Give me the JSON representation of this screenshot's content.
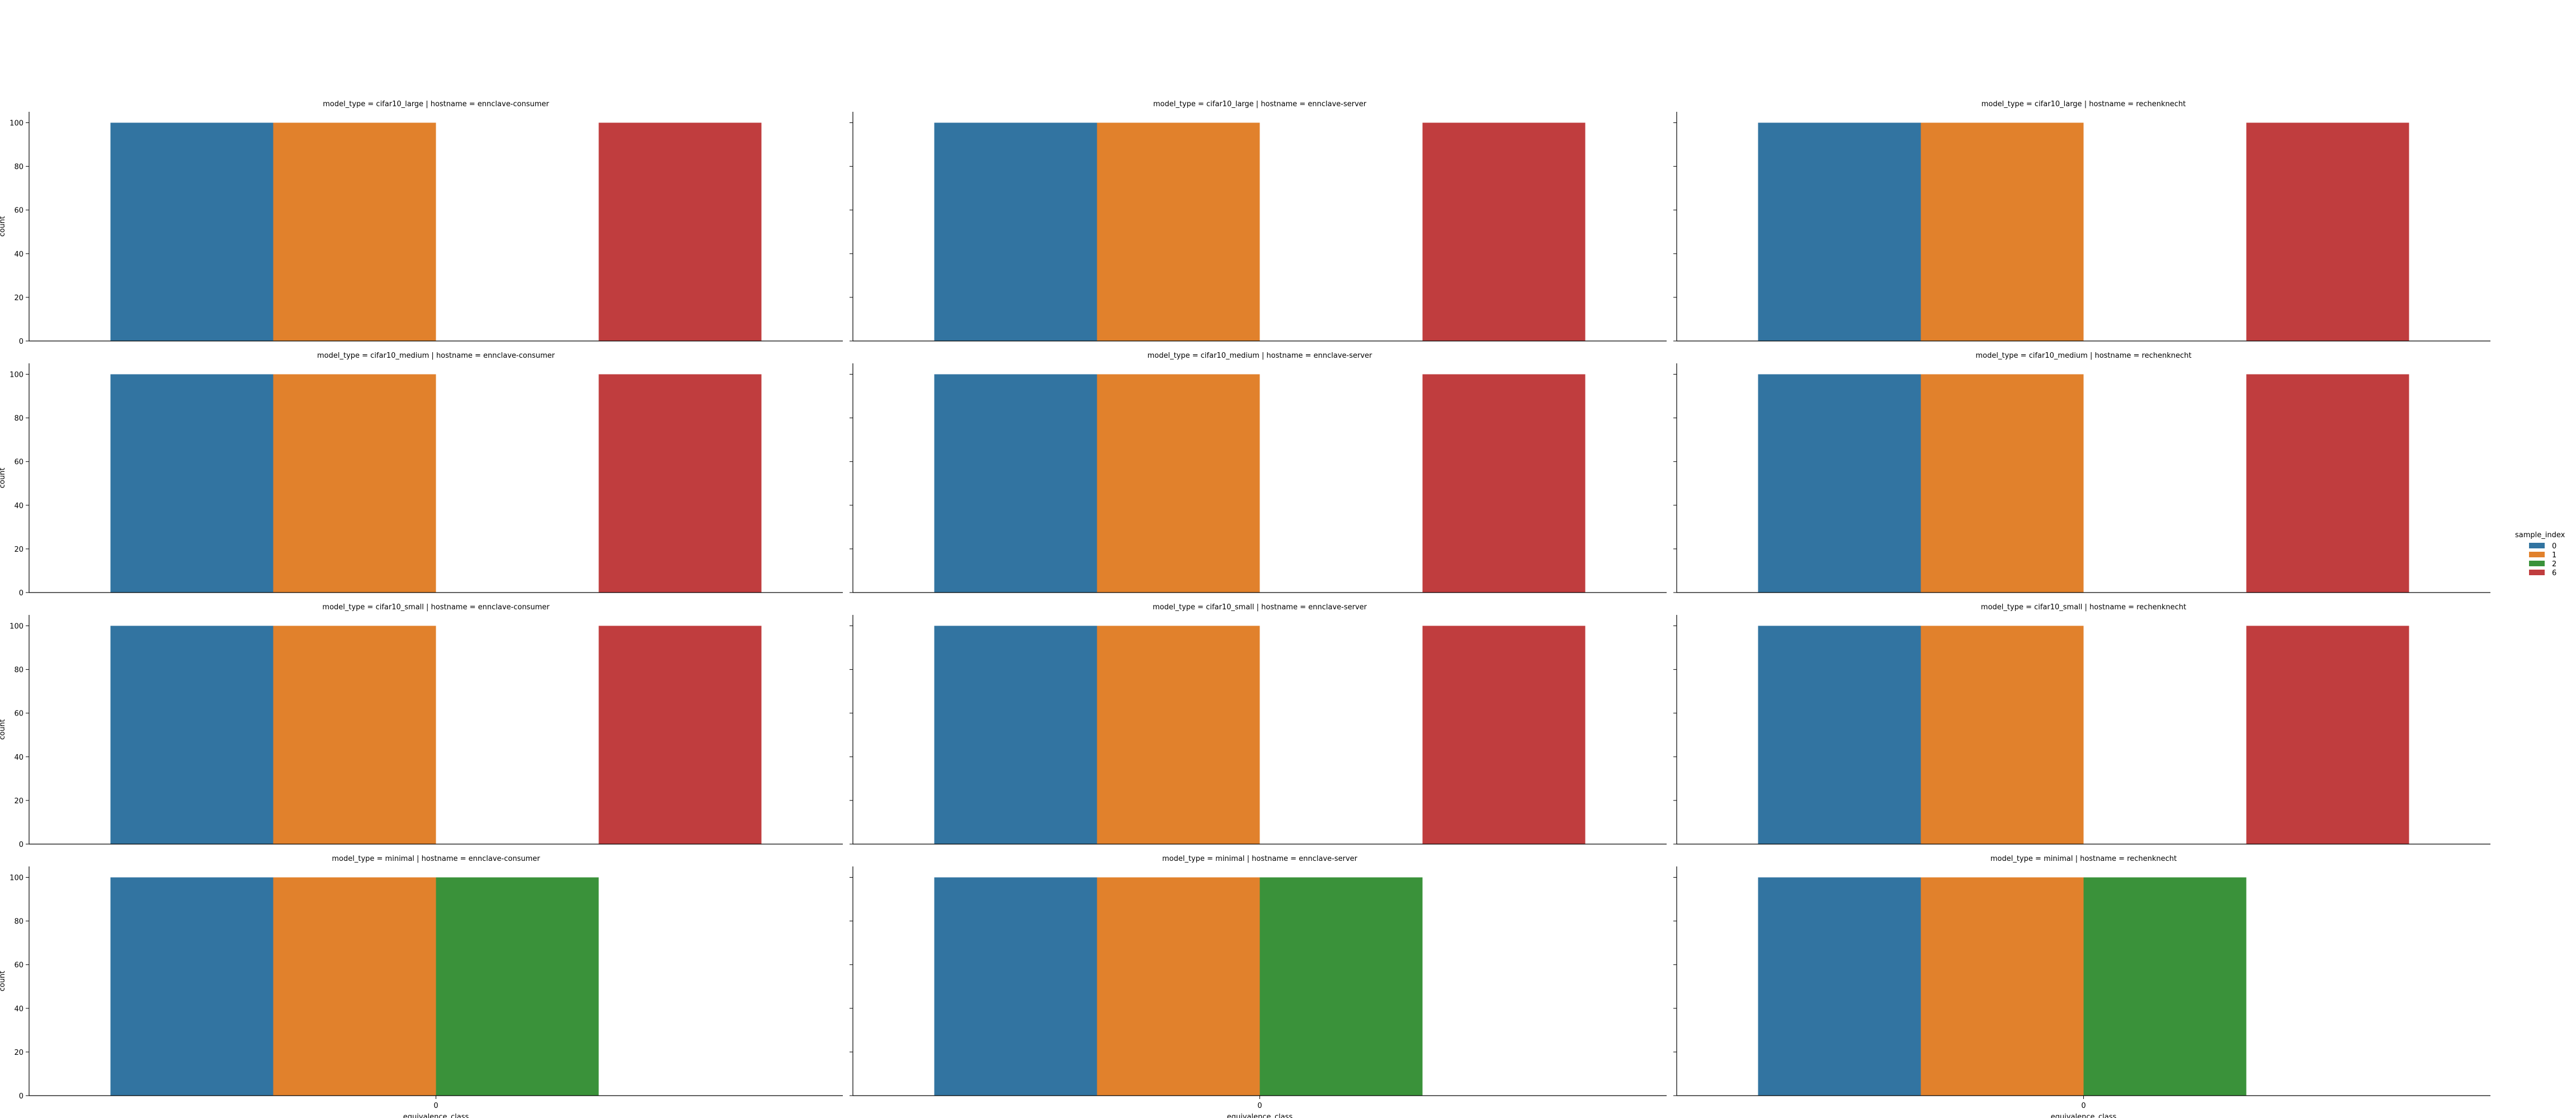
{
  "chart_data": {
    "type": "bar",
    "xlabel": "equivalence_class",
    "ylabel": "count",
    "ylim": [
      0,
      105
    ],
    "yticks": [
      "0",
      "20",
      "40",
      "60",
      "80",
      "100"
    ],
    "categories": [
      "0"
    ],
    "legend": {
      "title": "sample_index",
      "placement": "right",
      "entries": [
        "0",
        "1",
        "2",
        "6"
      ]
    },
    "colors": {
      "0": "#3274a1",
      "1": "#e1812c",
      "2": "#3a923a",
      "6": "#c03d3e"
    },
    "panels": [
      {
        "title": "model_type = cifar10_large | hostname = ennclave-consumer",
        "values": {
          "0": 100,
          "1": 100,
          "2": 0,
          "6": 100
        }
      },
      {
        "title": "model_type = cifar10_large | hostname = ennclave-server",
        "values": {
          "0": 100,
          "1": 100,
          "2": 0,
          "6": 100
        }
      },
      {
        "title": "model_type = cifar10_large | hostname = rechenknecht",
        "values": {
          "0": 100,
          "1": 100,
          "2": 0,
          "6": 100
        }
      },
      {
        "title": "model_type = cifar10_medium | hostname = ennclave-consumer",
        "values": {
          "0": 100,
          "1": 100,
          "2": 0,
          "6": 100
        }
      },
      {
        "title": "model_type = cifar10_medium | hostname = ennclave-server",
        "values": {
          "0": 100,
          "1": 100,
          "2": 0,
          "6": 100
        }
      },
      {
        "title": "model_type = cifar10_medium | hostname = rechenknecht",
        "values": {
          "0": 100,
          "1": 100,
          "2": 0,
          "6": 100
        }
      },
      {
        "title": "model_type = cifar10_small | hostname = ennclave-consumer",
        "values": {
          "0": 100,
          "1": 100,
          "2": 0,
          "6": 100
        }
      },
      {
        "title": "model_type = cifar10_small | hostname = ennclave-server",
        "values": {
          "0": 100,
          "1": 100,
          "2": 0,
          "6": 100
        }
      },
      {
        "title": "model_type = cifar10_small | hostname = rechenknecht",
        "values": {
          "0": 100,
          "1": 100,
          "2": 0,
          "6": 100
        }
      },
      {
        "title": "model_type = minimal | hostname = ennclave-consumer",
        "values": {
          "0": 100,
          "1": 100,
          "2": 100,
          "6": 0
        }
      },
      {
        "title": "model_type = minimal | hostname = ennclave-server",
        "values": {
          "0": 100,
          "1": 100,
          "2": 100,
          "6": 0
        }
      },
      {
        "title": "model_type = minimal | hostname = rechenknecht",
        "values": {
          "0": 100,
          "1": 100,
          "2": 100,
          "6": 0
        }
      }
    ]
  }
}
